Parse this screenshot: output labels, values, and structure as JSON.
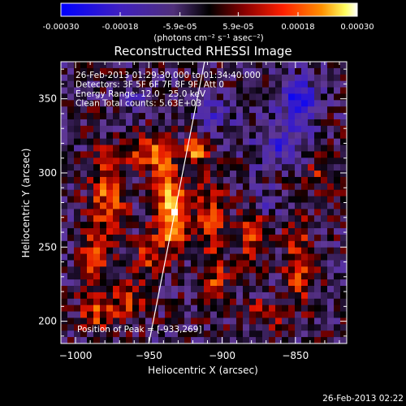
{
  "colorbar": {
    "ticks": [
      "-0.00030",
      "-0.00018",
      "-5.9e-05",
      "5.9e-05",
      "0.00018",
      "0.00030"
    ],
    "tick_values": [
      -0.0003,
      -0.00018,
      -5.9e-05,
      5.9e-05,
      0.00018,
      0.0003
    ],
    "range": [
      -0.0003,
      0.0003
    ],
    "unit_label": "(photons cm⁻² s⁻¹ asec⁻²)"
  },
  "chart_data": {
    "type": "heatmap",
    "title": "Reconstructed RHESSI Image",
    "xlabel": "Heliocentric X (arcsec)",
    "ylabel": "Heliocentric Y (arcsec)",
    "xlim": [
      -1010,
      -815
    ],
    "ylim": [
      185,
      375
    ],
    "xticks": [
      -1000,
      -950,
      -900,
      -850
    ],
    "yticks": [
      200,
      250,
      300,
      350
    ],
    "xtick_labels": [
      "−1000",
      "−950",
      "−900",
      "−850"
    ],
    "ytick_labels": [
      "200",
      "250",
      "300",
      "350"
    ],
    "annotations": [
      "26-Feb-2013 01:29:30.000 to 01:34:40.000",
      "Detectors: 3F 5F 6F 7F 8F 9F, Att 0",
      "Energy Range: 12.0 - 25.0 keV",
      "Clean    Total counts: 5.63E+03"
    ],
    "peak_label": "Position of Peak = [-933,269]",
    "peak": [
      -933,
      269
    ],
    "limb_line": [
      [
        -950,
        185
      ],
      [
        -912,
        375
      ]
    ],
    "colormap": [
      "#0000ff",
      "#5a2fb0",
      "#6b3aa0",
      "#000000",
      "#8a0000",
      "#ff2000",
      "#ff8000",
      "#ffff60",
      "#ffffff"
    ],
    "bright_regions": [
      {
        "x": -933,
        "y": 269,
        "sx": 10,
        "sy": 22,
        "v": 0.98
      },
      {
        "x": -940,
        "y": 300,
        "sx": 8,
        "sy": 18,
        "v": 0.6
      },
      {
        "x": -918,
        "y": 315,
        "sx": 8,
        "sy": 8,
        "v": 0.75
      },
      {
        "x": -952,
        "y": 315,
        "sx": 14,
        "sy": 10,
        "v": 0.55
      },
      {
        "x": -978,
        "y": 285,
        "sx": 12,
        "sy": 30,
        "v": 0.55
      },
      {
        "x": -988,
        "y": 240,
        "sx": 10,
        "sy": 20,
        "v": 0.5
      },
      {
        "x": -985,
        "y": 205,
        "sx": 12,
        "sy": 12,
        "v": 0.45
      },
      {
        "x": -965,
        "y": 215,
        "sx": 12,
        "sy": 15,
        "v": 0.4
      },
      {
        "x": -950,
        "y": 245,
        "sx": 8,
        "sy": 15,
        "v": 0.45
      },
      {
        "x": -908,
        "y": 270,
        "sx": 10,
        "sy": 25,
        "v": 0.45
      },
      {
        "x": -905,
        "y": 225,
        "sx": 10,
        "sy": 18,
        "v": 0.4
      },
      {
        "x": -880,
        "y": 260,
        "sx": 10,
        "sy": 20,
        "v": 0.45
      },
      {
        "x": -848,
        "y": 240,
        "sx": 10,
        "sy": 30,
        "v": 0.45
      },
      {
        "x": -835,
        "y": 300,
        "sx": 10,
        "sy": 15,
        "v": 0.3
      },
      {
        "x": -870,
        "y": 205,
        "sx": 15,
        "sy": 10,
        "v": 0.35
      }
    ],
    "dark_regions": [
      {
        "x": -848,
        "y": 350,
        "sx": 14,
        "sy": 14,
        "v": -0.6
      },
      {
        "x": -860,
        "y": 320,
        "sx": 20,
        "sy": 15,
        "v": -0.45
      },
      {
        "x": -905,
        "y": 340,
        "sx": 12,
        "sy": 10,
        "v": -0.35
      },
      {
        "x": -870,
        "y": 280,
        "sx": 10,
        "sy": 10,
        "v": -0.3
      },
      {
        "x": -960,
        "y": 350,
        "sx": 12,
        "sy": 8,
        "v": -0.3
      }
    ]
  },
  "timestamp": "26-Feb-2013 02:22"
}
